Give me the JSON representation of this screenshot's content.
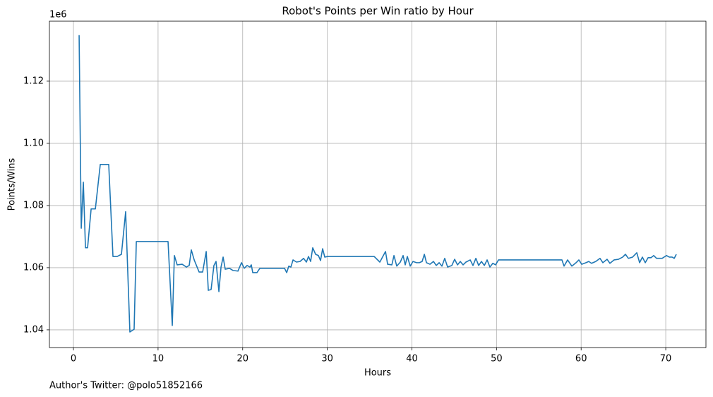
{
  "chart_data": {
    "type": "line",
    "title": "Robot's Points per Win ratio by Hour",
    "x_label": "Hours",
    "y_label": "Points/Wins",
    "y_offset_label": "1e6",
    "footer": "Author's Twitter: @polo51852166",
    "color": "#1f77b4",
    "grid": true,
    "xlim": [
      -2.84,
      74.75
    ],
    "ylim": [
      1034300,
      1139300
    ],
    "xticks": [
      0,
      10,
      20,
      30,
      40,
      50,
      60,
      70
    ],
    "yticks": [
      {
        "value": 1040000,
        "label": "1.04"
      },
      {
        "value": 1060000,
        "label": "1.06"
      },
      {
        "value": 1080000,
        "label": "1.08"
      },
      {
        "value": 1100000,
        "label": "1.10"
      },
      {
        "value": 1120000,
        "label": "1.12"
      }
    ],
    "x": [
      0.67,
      0.92,
      1.17,
      1.42,
      1.67,
      2.09,
      2.59,
      3.17,
      4.17,
      4.67,
      5.17,
      5.67,
      6.17,
      6.67,
      7.17,
      7.43,
      11.18,
      11.68,
      11.93,
      12.26,
      12.85,
      13.35,
      13.68,
      13.93,
      14.27,
      14.85,
      15.27,
      15.69,
      15.94,
      16.27,
      16.6,
      16.85,
      17.19,
      17.44,
      17.69,
      17.94,
      18.44,
      18.86,
      19.44,
      19.86,
      20.19,
      20.52,
      20.86,
      21.02,
      21.19,
      21.69,
      22.03,
      24.95,
      25.2,
      25.45,
      25.7,
      25.95,
      26.36,
      26.78,
      27.2,
      27.53,
      27.78,
      28.03,
      28.28,
      28.62,
      28.95,
      29.2,
      29.45,
      29.7,
      30.04,
      35.54,
      36.21,
      36.88,
      37.13,
      37.63,
      37.88,
      38.21,
      38.63,
      38.96,
      39.21,
      39.46,
      39.8,
      40.13,
      40.55,
      40.88,
      41.21,
      41.47,
      41.72,
      42.13,
      42.55,
      42.88,
      43.22,
      43.55,
      43.88,
      44.22,
      44.72,
      45.05,
      45.39,
      45.72,
      46.05,
      46.39,
      46.89,
      47.22,
      47.56,
      47.89,
      48.22,
      48.56,
      48.89,
      49.22,
      49.56,
      49.89,
      50.23,
      57.73,
      57.98,
      58.4,
      58.9,
      59.4,
      59.73,
      60.07,
      60.57,
      60.9,
      61.23,
      61.73,
      62.23,
      62.57,
      63.07,
      63.4,
      63.9,
      64.41,
      64.91,
      65.24,
      65.58,
      66.08,
      66.58,
      66.91,
      67.24,
      67.58,
      67.91,
      68.25,
      68.58,
      68.91,
      69.58,
      70.08,
      70.42,
      70.75,
      71.0,
      71.25
    ],
    "values": [
      1134800,
      1072700,
      1087500,
      1066400,
      1066400,
      1078900,
      1078900,
      1093200,
      1093200,
      1063600,
      1063600,
      1064300,
      1078000,
      1039300,
      1040200,
      1068400,
      1068400,
      1041400,
      1063900,
      1060900,
      1061100,
      1060200,
      1060700,
      1065700,
      1062500,
      1058600,
      1058600,
      1065200,
      1052700,
      1053000,
      1060700,
      1062000,
      1052300,
      1060200,
      1063400,
      1059500,
      1059800,
      1059100,
      1058900,
      1061600,
      1059800,
      1060700,
      1060200,
      1060900,
      1058400,
      1058400,
      1059800,
      1059800,
      1058400,
      1060500,
      1060200,
      1062500,
      1061800,
      1062000,
      1063000,
      1061800,
      1063600,
      1062000,
      1066400,
      1064300,
      1063900,
      1062300,
      1066100,
      1063400,
      1063600,
      1063600,
      1061800,
      1065200,
      1061100,
      1060900,
      1063900,
      1060500,
      1061800,
      1063900,
      1060900,
      1063600,
      1060500,
      1062000,
      1061600,
      1061600,
      1062000,
      1064300,
      1061600,
      1061100,
      1062000,
      1060700,
      1061600,
      1060500,
      1063000,
      1060200,
      1060700,
      1062700,
      1060900,
      1062000,
      1060900,
      1061800,
      1062500,
      1060700,
      1063000,
      1060700,
      1062000,
      1060700,
      1062500,
      1060200,
      1061400,
      1060900,
      1062500,
      1062500,
      1060500,
      1062500,
      1060500,
      1061600,
      1062500,
      1061100,
      1061600,
      1062000,
      1061400,
      1062000,
      1063000,
      1061600,
      1062700,
      1061400,
      1062500,
      1062700,
      1063400,
      1064300,
      1063000,
      1063400,
      1064800,
      1061600,
      1063400,
      1061600,
      1063200,
      1063200,
      1063900,
      1063000,
      1063000,
      1063900,
      1063400,
      1063400,
      1063000,
      1064300
    ]
  }
}
